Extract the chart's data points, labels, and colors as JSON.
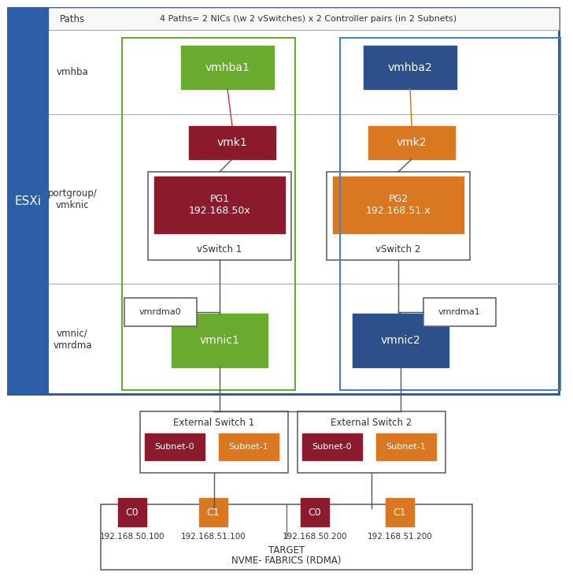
{
  "bg_color": "#ffffff",
  "esxi_color": "#2d5fa8",
  "green_color": "#6aaa2e",
  "dark_blue_color": "#2d4f8a",
  "dark_red_color": "#8b1a2d",
  "orange_color": "#d97820",
  "label_color": "#333333",
  "paths_text": "4 Paths= 2 NICs (\\w 2 vSwitches) x 2 Controller pairs (in 2 Subnets)",
  "esxi_label": "ESXi",
  "paths_label": "Paths",
  "vmhba1_label": "vmhba1",
  "vmhba2_label": "vmhba2",
  "vmk1_label": "vmk1",
  "vmk2_label": "vmk2",
  "pg1_label": "PG1\n192.168.50x",
  "pg2_label": "PG2\n192.168.51.x",
  "vswitch1_label": "vSwitch 1",
  "vswitch2_label": "vSwitch 2",
  "vmrdma0_label": "vmrdma0",
  "vmrdma1_label": "vmrdma1",
  "vmnic1_label": "vmnic1",
  "vmnic2_label": "vmnic2",
  "row1_label": "vmhba",
  "row2a_label": "portgroup/",
  "row2b_label": "vmknic",
  "row3a_label": "vmnic/",
  "row3b_label": "vmrdma",
  "ext_sw1_label": "External Switch 1",
  "ext_sw2_label": "External Switch 2",
  "subnet0_label": "Subnet-0",
  "subnet1_label": "Subnet-1",
  "c0_label": "C0",
  "c1_label": "C1",
  "ip1": "192.168.50.100",
  "ip2": "192.168.51.100",
  "ip3": "192.168.50.200",
  "ip4": "192.168.51.200",
  "target_line1": "TARGET",
  "target_line2": "NVME- FABRICS (RDMA)"
}
